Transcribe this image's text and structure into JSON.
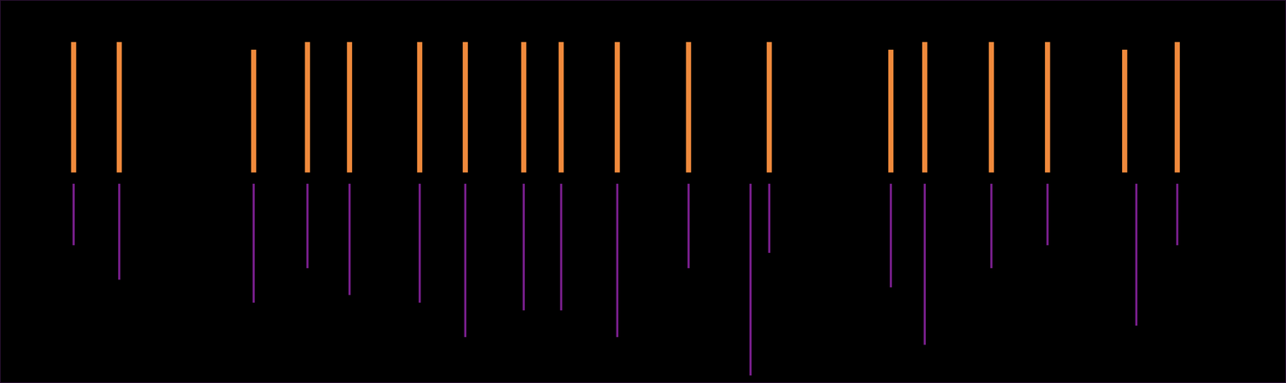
{
  "chart_data": {
    "type": "bar",
    "xlim": [
      0,
      1
    ],
    "ylim": [
      0,
      1
    ],
    "grid": false,
    "tick_labels": false,
    "series": [
      {
        "color": "#f08a3c",
        "x": [
          0.013,
          0.052,
          0.167,
          0.213,
          0.249,
          0.309,
          0.348,
          0.398,
          0.43,
          0.478,
          0.539,
          0.608,
          0.712,
          0.741,
          0.798,
          0.846,
          0.912,
          0.957
        ],
        "values": [
          [
            0.55,
            0.89
          ],
          [
            0.55,
            0.89
          ],
          [
            0.55,
            0.87
          ],
          [
            0.55,
            0.89
          ],
          [
            0.55,
            0.89
          ],
          [
            0.55,
            0.89
          ],
          [
            0.55,
            0.89
          ],
          [
            0.55,
            0.89
          ],
          [
            0.55,
            0.89
          ],
          [
            0.55,
            0.89
          ],
          [
            0.55,
            0.89
          ],
          [
            0.55,
            0.89
          ],
          [
            0.55,
            0.87
          ],
          [
            0.55,
            0.89
          ],
          [
            0.55,
            0.89
          ],
          [
            0.55,
            0.89
          ],
          [
            0.55,
            0.87
          ],
          [
            0.55,
            0.89
          ]
        ]
      },
      {
        "color": "#7a1f8e",
        "x": [
          0.013,
          0.052,
          0.167,
          0.213,
          0.249,
          0.309,
          0.348,
          0.398,
          0.43,
          0.478,
          0.539,
          0.592,
          0.608,
          0.712,
          0.741,
          0.798,
          0.846,
          0.922,
          0.957
        ],
        "values": [
          [
            0.36,
            0.52
          ],
          [
            0.27,
            0.52
          ],
          [
            0.21,
            0.52
          ],
          [
            0.3,
            0.52
          ],
          [
            0.23,
            0.52
          ],
          [
            0.21,
            0.52
          ],
          [
            0.12,
            0.52
          ],
          [
            0.19,
            0.52
          ],
          [
            0.19,
            0.52
          ],
          [
            0.12,
            0.52
          ],
          [
            0.3,
            0.52
          ],
          [
            0.02,
            0.52
          ],
          [
            0.34,
            0.52
          ],
          [
            0.25,
            0.52
          ],
          [
            0.1,
            0.52
          ],
          [
            0.3,
            0.52
          ],
          [
            0.36,
            0.52
          ],
          [
            0.15,
            0.52
          ],
          [
            0.36,
            0.52
          ]
        ]
      }
    ]
  }
}
